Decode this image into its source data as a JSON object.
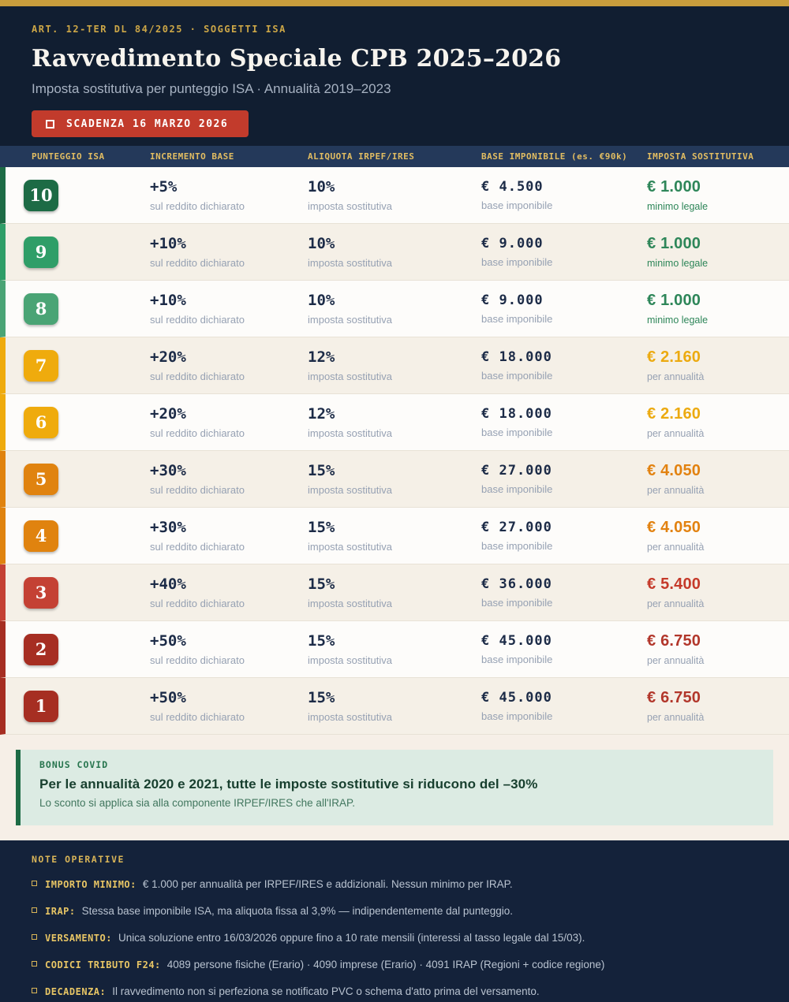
{
  "header": {
    "kicker": "ART. 12-TER DL 84/2025  ·  SOGGETTI ISA",
    "title": "Ravvedimento Speciale CPB 2025–2026",
    "subtitle": "Imposta sostitutiva per punteggio ISA  ·  Annualità 2019–2023",
    "deadline": "SCADENZA 16 MARZO 2026",
    "accent_gold": "#c99d3c",
    "deadline_red": "#c23b2c"
  },
  "table": {
    "columns": [
      {
        "label": "PUNTEGGIO ISA"
      },
      {
        "label": "INCREMENTO BASE"
      },
      {
        "label": "ALIQUOTA IRPEF/IRES"
      },
      {
        "label": "BASE IMPONIBILE (es. €90k)"
      },
      {
        "label": "IMPOSTA SOSTITUTIVA"
      }
    ],
    "rows": [
      {
        "score": "10",
        "accent": "#1d6b45",
        "bg": "#fdfcfa",
        "increment": "+5%",
        "increment_sub": "sul reddito dichiarato",
        "rate": "10%",
        "rate_sub": "imposta sostitutiva",
        "base": "€ 4.500",
        "base_sub": "base imponibile",
        "tax": "€ 1.000",
        "tax_sub": "minimo legale",
        "value_color": "#2e8659",
        "value_sub_color": "#2e8659"
      },
      {
        "score": "9",
        "accent": "#2f9e68",
        "bg": "#f5f0e7",
        "increment": "+10%",
        "increment_sub": "sul reddito dichiarato",
        "rate": "10%",
        "rate_sub": "imposta sostitutiva",
        "base": "€ 9.000",
        "base_sub": "base imponibile",
        "tax": "€ 1.000",
        "tax_sub": "minimo legale",
        "value_color": "#2e8659",
        "value_sub_color": "#2e8659"
      },
      {
        "score": "8",
        "accent": "#4aa475",
        "bg": "#fdfcfa",
        "increment": "+10%",
        "increment_sub": "sul reddito dichiarato",
        "rate": "10%",
        "rate_sub": "imposta sostitutiva",
        "base": "€ 9.000",
        "base_sub": "base imponibile",
        "tax": "€ 1.000",
        "tax_sub": "minimo legale",
        "value_color": "#2e8659",
        "value_sub_color": "#2e8659"
      },
      {
        "score": "7",
        "accent": "#efab0d",
        "bg": "#f5f0e7",
        "increment": "+20%",
        "increment_sub": "sul reddito dichiarato",
        "rate": "12%",
        "rate_sub": "imposta sostitutiva",
        "base": "€ 18.000",
        "base_sub": "base imponibile",
        "tax": "€ 2.160",
        "tax_sub": "per annualità",
        "value_color": "#ecaa10",
        "value_sub_color": "#96a1b3"
      },
      {
        "score": "6",
        "accent": "#efab0d",
        "bg": "#fdfcfa",
        "increment": "+20%",
        "increment_sub": "sul reddito dichiarato",
        "rate": "12%",
        "rate_sub": "imposta sostitutiva",
        "base": "€ 18.000",
        "base_sub": "base imponibile",
        "tax": "€ 2.160",
        "tax_sub": "per annualità",
        "value_color": "#ecaa10",
        "value_sub_color": "#96a1b3"
      },
      {
        "score": "5",
        "accent": "#e0830f",
        "bg": "#f5f0e7",
        "increment": "+30%",
        "increment_sub": "sul reddito dichiarato",
        "rate": "15%",
        "rate_sub": "imposta sostitutiva",
        "base": "€ 27.000",
        "base_sub": "base imponibile",
        "tax": "€ 4.050",
        "tax_sub": "per annualità",
        "value_color": "#e28210",
        "value_sub_color": "#96a1b3"
      },
      {
        "score": "4",
        "accent": "#e0830f",
        "bg": "#fdfcfa",
        "increment": "+30%",
        "increment_sub": "sul reddito dichiarato",
        "rate": "15%",
        "rate_sub": "imposta sostitutiva",
        "base": "€ 27.000",
        "base_sub": "base imponibile",
        "tax": "€ 4.050",
        "tax_sub": "per annualità",
        "value_color": "#e28210",
        "value_sub_color": "#96a1b3"
      },
      {
        "score": "3",
        "accent": "#c44134",
        "bg": "#f5f0e7",
        "increment": "+40%",
        "increment_sub": "sul reddito dichiarato",
        "rate": "15%",
        "rate_sub": "imposta sostitutiva",
        "base": "€ 36.000",
        "base_sub": "base imponibile",
        "tax": "€ 5.400",
        "tax_sub": "per annualità",
        "value_color": "#c53a2a",
        "value_sub_color": "#96a1b3"
      },
      {
        "score": "2",
        "accent": "#a62e22",
        "bg": "#fdfcfa",
        "increment": "+50%",
        "increment_sub": "sul reddito dichiarato",
        "rate": "15%",
        "rate_sub": "imposta sostitutiva",
        "base": "€ 45.000",
        "base_sub": "base imponibile",
        "tax": "€ 6.750",
        "tax_sub": "per annualità",
        "value_color": "#b2372b",
        "value_sub_color": "#96a1b3"
      },
      {
        "score": "1",
        "accent": "#a62e22",
        "bg": "#f5f0e7",
        "increment": "+50%",
        "increment_sub": "sul reddito dichiarato",
        "rate": "15%",
        "rate_sub": "imposta sostitutiva",
        "base": "€ 45.000",
        "base_sub": "base imponibile",
        "tax": "€ 6.750",
        "tax_sub": "per annualità",
        "value_color": "#b2372b",
        "value_sub_color": "#96a1b3"
      }
    ]
  },
  "bonus": {
    "label": "BONUS COVID",
    "title": "Per le annualità 2020 e 2021, tutte le imposte sostitutive si riducono del  –30%",
    "text": "Lo sconto si applica sia alla componente IRPEF/IRES che all'IRAP.",
    "accent_green": "#1d6b45"
  },
  "notes": {
    "title": "NOTE OPERATIVE",
    "items": [
      {
        "label": "IMPORTO MINIMO:",
        "text": "€ 1.000 per annualità per IRPEF/IRES e addizionali. Nessun minimo per IRAP."
      },
      {
        "label": "IRAP:",
        "text": "Stessa base imponibile ISA, ma aliquota fissa al 3,9% — indipendentemente dal punteggio."
      },
      {
        "label": "VERSAMENTO:",
        "text": "Unica soluzione entro 16/03/2026 oppure fino a 10 rate mensili (interessi al tasso legale dal 15/03)."
      },
      {
        "label": "CODICI TRIBUTO F24:",
        "text": "4089 persone fisiche (Erario)  ·  4090 imprese (Erario)  ·  4091 IRAP (Regioni + codice regione)"
      },
      {
        "label": "DECADENZA:",
        "text": "Il ravvedimento non si perfeziona se notificato PVC o schema d'atto prima del versamento."
      }
    ]
  }
}
